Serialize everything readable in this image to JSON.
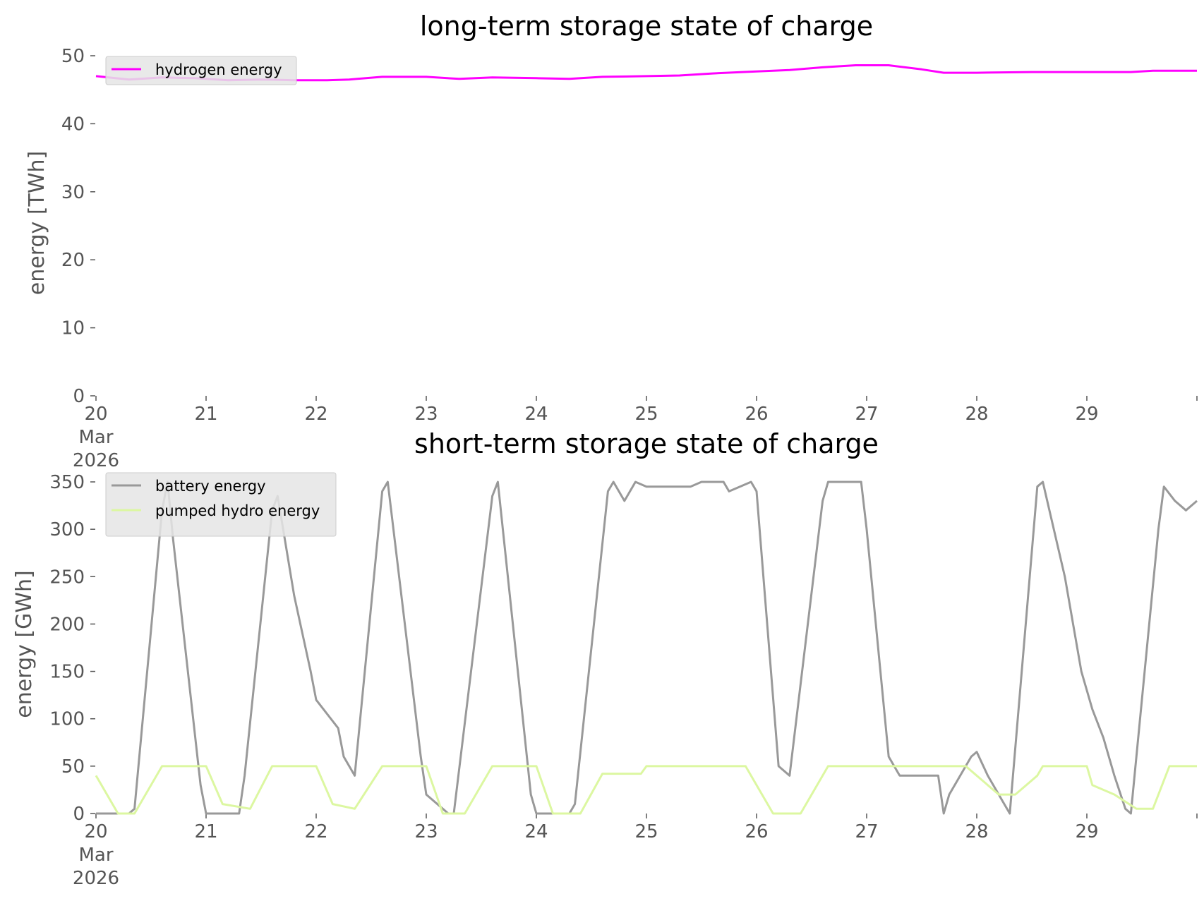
{
  "chart_data": [
    {
      "type": "line",
      "title": "long-term storage state of charge",
      "xlabel": "",
      "ylabel": "energy [TWh]",
      "ylim": [
        0,
        50
      ],
      "yticks": [
        "0",
        "10",
        "20",
        "30",
        "40",
        "50"
      ],
      "xlim": [
        0,
        10
      ],
      "xticks": [
        "20",
        "21",
        "22",
        "23",
        "24",
        "25",
        "26",
        "27",
        "28",
        "29"
      ],
      "xtick_first_extra": [
        "Mar",
        "2026"
      ],
      "grid": false,
      "legend_position": "top-left",
      "series": [
        {
          "name": "hydrogen energy",
          "color": "#ff00ff",
          "x": [
            0,
            0.3,
            0.6,
            0.9,
            1.2,
            1.5,
            1.8,
            2.1,
            2.3,
            2.6,
            3.0,
            3.3,
            3.6,
            4.0,
            4.3,
            4.6,
            5.0,
            5.3,
            5.6,
            6.0,
            6.3,
            6.6,
            6.9,
            7.2,
            7.5,
            7.7,
            8.0,
            8.5,
            9.0,
            9.4,
            9.6,
            10.0
          ],
          "y": [
            47.0,
            46.5,
            46.8,
            46.7,
            46.4,
            46.5,
            46.4,
            46.4,
            46.5,
            46.9,
            46.9,
            46.6,
            46.8,
            46.7,
            46.6,
            46.9,
            47.0,
            47.1,
            47.4,
            47.7,
            47.9,
            48.3,
            48.6,
            48.6,
            48.0,
            47.5,
            47.5,
            47.6,
            47.6,
            47.6,
            47.8,
            47.8
          ]
        }
      ]
    },
    {
      "type": "line",
      "title": "short-term storage state of charge",
      "xlabel": "",
      "ylabel": "energy [GWh]",
      "ylim": [
        0,
        350
      ],
      "yticks": [
        "0",
        "50",
        "100",
        "150",
        "200",
        "250",
        "300",
        "350"
      ],
      "xlim": [
        0,
        10
      ],
      "xticks": [
        "20",
        "21",
        "22",
        "23",
        "24",
        "25",
        "26",
        "27",
        "28",
        "29"
      ],
      "xtick_first_extra": [
        "Mar",
        "2026"
      ],
      "grid": false,
      "legend_position": "top-left",
      "series": [
        {
          "name": "battery energy",
          "color": "#999999",
          "x": [
            0,
            0.3,
            0.35,
            0.6,
            0.65,
            0.7,
            0.95,
            1.0,
            1.3,
            1.35,
            1.6,
            1.65,
            1.8,
            1.95,
            2.0,
            2.2,
            2.25,
            2.35,
            2.6,
            2.65,
            2.95,
            3.0,
            3.2,
            3.25,
            3.6,
            3.65,
            3.95,
            4.0,
            4.3,
            4.35,
            4.65,
            4.7,
            4.8,
            4.9,
            5.0,
            5.4,
            5.5,
            5.7,
            5.75,
            5.95,
            6.0,
            6.2,
            6.3,
            6.6,
            6.65,
            6.95,
            7.0,
            7.2,
            7.3,
            7.4,
            7.65,
            7.7,
            7.75,
            7.95,
            8.0,
            8.1,
            8.25,
            8.3,
            8.55,
            8.6,
            8.8,
            8.95,
            9.05,
            9.15,
            9.25,
            9.35,
            9.4,
            9.65,
            9.7,
            9.8,
            9.9,
            10.0
          ],
          "y": [
            0,
            0,
            5,
            320,
            350,
            290,
            30,
            0,
            0,
            40,
            320,
            335,
            230,
            150,
            120,
            90,
            60,
            40,
            340,
            350,
            60,
            20,
            0,
            0,
            335,
            350,
            20,
            0,
            0,
            10,
            340,
            350,
            330,
            350,
            345,
            345,
            350,
            350,
            340,
            350,
            340,
            50,
            40,
            330,
            350,
            350,
            300,
            60,
            40,
            40,
            40,
            0,
            20,
            60,
            65,
            40,
            10,
            0,
            345,
            350,
            250,
            150,
            110,
            80,
            40,
            5,
            0,
            300,
            345,
            330,
            320,
            330
          ]
        },
        {
          "name": "pumped hydro energy",
          "color": "#dcf7a1",
          "x": [
            0,
            0.2,
            0.35,
            0.6,
            1.0,
            1.15,
            1.4,
            1.6,
            2.0,
            2.15,
            2.35,
            2.6,
            3.0,
            3.15,
            3.35,
            3.6,
            4.0,
            4.15,
            4.4,
            4.6,
            4.95,
            5.0,
            5.9,
            6.15,
            6.4,
            6.65,
            7.9,
            8.0,
            8.2,
            8.35,
            8.55,
            8.6,
            9.0,
            9.05,
            9.25,
            9.45,
            9.6,
            9.75,
            10.0
          ],
          "y": [
            40,
            0,
            0,
            50,
            50,
            10,
            5,
            50,
            50,
            10,
            5,
            50,
            50,
            0,
            0,
            50,
            50,
            0,
            0,
            42,
            42,
            50,
            50,
            0,
            0,
            50,
            50,
            40,
            20,
            20,
            40,
            50,
            50,
            30,
            20,
            5,
            5,
            50,
            50
          ]
        }
      ]
    }
  ]
}
